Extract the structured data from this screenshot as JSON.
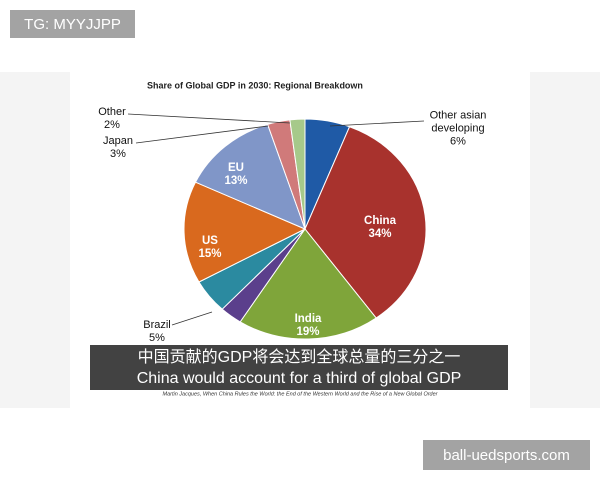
{
  "watermark": "TG: MYYJJPP",
  "chart_data": {
    "type": "pie",
    "title": "Share of Global GDP in 2030: Regional Breakdown",
    "categories": [
      "Other asian developing",
      "China",
      "India",
      null,
      "Brazil",
      "US",
      "EU",
      "Japan",
      "Other"
    ],
    "values": [
      6,
      34,
      19,
      3,
      5,
      15,
      13,
      3,
      2
    ],
    "value_labels": [
      "6%",
      "34%",
      "19%",
      null,
      "5%",
      "15%",
      "13%",
      "3%",
      "2%"
    ],
    "colors": [
      "#1f5aa6",
      "#a8322d",
      "#7fa53a",
      "#5b3f8c",
      "#2b8aa0",
      "#d9691e",
      "#8096c8",
      "#d07a7a",
      "#a6c98a"
    ],
    "source": "Martin Jacques, When China Rules the World: the End of the Western World and the Rise of a New Global Order"
  },
  "subtitle": {
    "zh": "中国贡献的GDP将会达到全球总量的三分之一",
    "en": "China would account for a third of global GDP"
  },
  "site": "ball-uedsports.com"
}
